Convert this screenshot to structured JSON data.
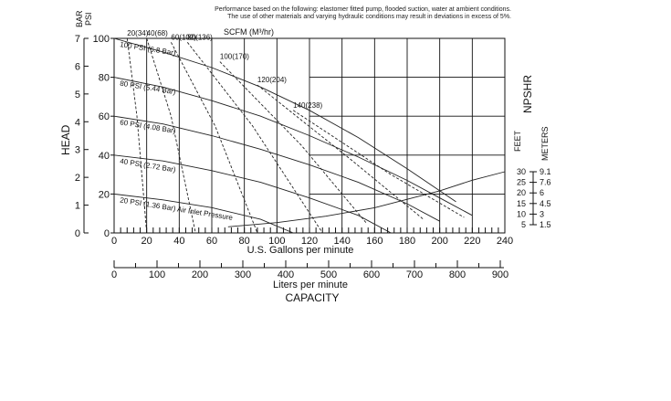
{
  "note": {
    "line1": "Performance based on the following: elastomer fitted pump, flooded suction, water at ambient conditions.",
    "line2": "The use of other materials and varying hydraulic conditions may result in deviations in excess of 5%."
  },
  "chart_data": {
    "type": "line",
    "xlabel": "U.S. Gallons per minute",
    "xlim": [
      0,
      240
    ],
    "x_ticks": [
      0,
      20,
      40,
      60,
      80,
      100,
      120,
      140,
      160,
      180,
      200,
      220,
      240
    ],
    "ylabel_psi": "PSI",
    "ylabel_bar": "BAR",
    "ylim_psi": [
      0,
      100
    ],
    "psi_ticks": [
      0,
      20,
      40,
      60,
      80,
      100
    ],
    "bar_ticks": [
      0,
      1,
      2,
      3,
      4,
      5,
      6,
      7
    ],
    "head_label": "HEAD",
    "secondary_x": {
      "label": "Liters per minute",
      "ticks": [
        0,
        100,
        200,
        300,
        400,
        500,
        600,
        700,
        800,
        900
      ]
    },
    "capacity_label": "CAPACITY",
    "scfm_label": "SCFM (M³/hr)",
    "npshr": {
      "label": "NPSHR",
      "feet_label": "FEET",
      "meters_label": "METERS",
      "feet_ticks": [
        5,
        10,
        15,
        20,
        25,
        30
      ],
      "meters_ticks": [
        "1.5",
        "3",
        "4.5",
        "6",
        "7.6",
        "9.1"
      ]
    },
    "grid": true,
    "series": [
      {
        "name": "100 PSI (6.8 Bar)",
        "x": [
          0,
          30,
          60,
          90,
          120,
          150,
          180,
          210
        ],
        "y": [
          100,
          93,
          85,
          75,
          63,
          49,
          33,
          16
        ]
      },
      {
        "name": "80 PSI (5.44 Bar)",
        "x": [
          0,
          30,
          60,
          90,
          120,
          150,
          180,
          200,
          220
        ],
        "y": [
          80,
          75,
          68,
          60,
          50,
          39,
          27,
          18,
          9
        ]
      },
      {
        "name": "60 PSI (4.08 Bar)",
        "x": [
          0,
          30,
          60,
          90,
          120,
          150,
          180,
          200
        ],
        "y": [
          60,
          56,
          50,
          43,
          35,
          26,
          15,
          6
        ]
      },
      {
        "name": "40 PSI (2.72 Bar)",
        "x": [
          0,
          30,
          60,
          90,
          120,
          150,
          170
        ],
        "y": [
          40,
          37,
          32,
          26,
          18,
          9,
          0
        ]
      },
      {
        "name": "20 PSI (1.36 Bar) Air Inlet Pressure",
        "x": [
          0,
          30,
          60,
          90,
          110
        ],
        "y": [
          20,
          17,
          13,
          7,
          0
        ]
      }
    ],
    "npshr_curve": {
      "x": [
        70,
        100,
        130,
        160,
        180,
        200,
        220,
        240
      ],
      "y": [
        4,
        6,
        9,
        13,
        17,
        21,
        26,
        30
      ]
    },
    "scfm_lines": [
      {
        "label": "20(34)",
        "x": [
          8,
          14,
          20
        ],
        "y": [
          100,
          60,
          0
        ]
      },
      {
        "label": "40(68)",
        "x": [
          20,
          35,
          50
        ],
        "y": [
          100,
          60,
          0
        ]
      },
      {
        "label": "60(102)",
        "x": [
          35,
          62,
          88
        ],
        "y": [
          98,
          55,
          0
        ]
      },
      {
        "label": "80(136)",
        "x": [
          45,
          85,
          128
        ],
        "y": [
          98,
          55,
          0
        ]
      },
      {
        "label": "100(170)",
        "x": [
          65,
          115,
          155
        ],
        "y": [
          88,
          45,
          5
        ]
      },
      {
        "label": "120(204)",
        "x": [
          88,
          145,
          190
        ],
        "y": [
          76,
          38,
          7
        ]
      },
      {
        "label": "140(238)",
        "x": [
          110,
          170,
          215
        ],
        "y": [
          63,
          30,
          8
        ]
      }
    ]
  }
}
